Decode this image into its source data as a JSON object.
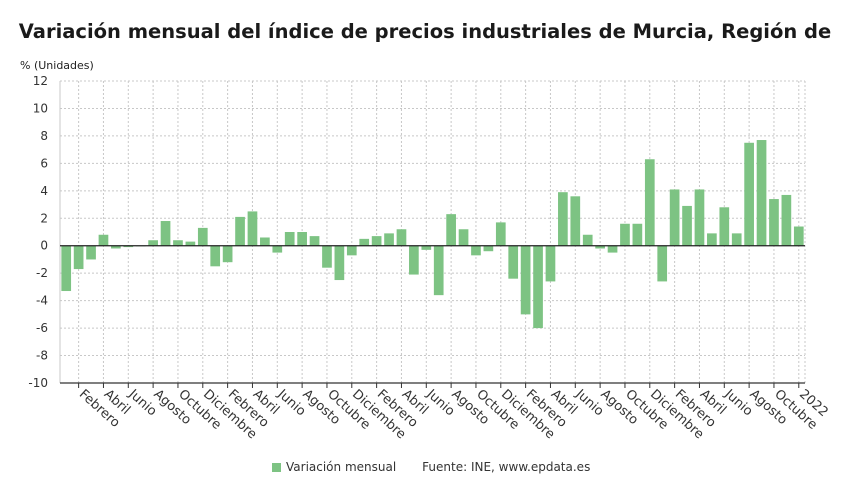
{
  "chart_data": {
    "type": "bar",
    "title": "Variación mensual del índice de precios industriales de Murcia, Región de",
    "ylabel": "% (Unidades)",
    "ylim": [
      -10,
      12
    ],
    "yticks": [
      -10,
      -8,
      -6,
      -4,
      -2,
      0,
      2,
      4,
      6,
      8,
      10,
      12
    ],
    "grid": true,
    "legend_position": "bottom",
    "bar_color": "#7dc383",
    "x_tick_labels": [
      "Febrero",
      "Abril",
      "Junio",
      "Agosto",
      "Octubre",
      "Diciembre",
      "Febrero",
      "Abril",
      "Junio",
      "Agosto",
      "Octubre",
      "Diciembre",
      "Febrero",
      "Abril",
      "Junio",
      "Agosto",
      "Octubre",
      "Diciembre",
      "Febrero",
      "Abril",
      "Junio",
      "Agosto",
      "Octubre",
      "Diciembre",
      "Febrero",
      "Abril",
      "Junio",
      "Agosto",
      "Octubre",
      "2022"
    ],
    "series": [
      {
        "name": "Variación mensual",
        "values": [
          -3.3,
          -1.7,
          -1.0,
          0.8,
          -0.2,
          -0.1,
          0.0,
          0.4,
          1.8,
          0.4,
          0.3,
          1.3,
          -1.5,
          -1.2,
          2.1,
          2.5,
          0.6,
          -0.5,
          1.0,
          1.0,
          0.7,
          -1.6,
          -2.5,
          -0.7,
          0.5,
          0.7,
          0.9,
          1.2,
          -2.1,
          -0.3,
          -3.6,
          2.3,
          1.2,
          -0.7,
          -0.4,
          1.7,
          -2.4,
          -5.0,
          -6.0,
          -2.6,
          3.9,
          3.6,
          0.8,
          -0.2,
          -0.5,
          1.6,
          1.6,
          6.3,
          -2.6,
          4.1,
          2.9,
          4.1,
          0.9,
          2.8,
          0.9,
          7.5,
          7.7,
          3.4,
          3.7,
          1.4
        ]
      }
    ]
  },
  "legend": {
    "series_label": "Variación mensual",
    "source": "Fuente: INE, www.epdata.es"
  }
}
